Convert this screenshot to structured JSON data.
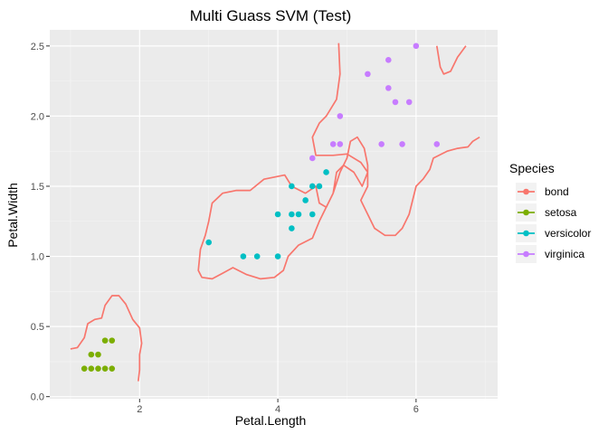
{
  "chart_data": {
    "type": "scatter",
    "title": "Multi Guass SVM (Test)",
    "xlabel": "Petal.Length",
    "ylabel": "Petal.Width",
    "xlim": [
      0.7,
      7.18
    ],
    "ylim": [
      -0.015,
      2.615
    ],
    "x_ticks": [
      2,
      4,
      6
    ],
    "x_tick_labels": [
      "2",
      "4",
      "6"
    ],
    "y_ticks": [
      0.0,
      0.5,
      1.0,
      1.5,
      2.0,
      2.5
    ],
    "y_tick_labels": [
      "0.0",
      "0.5",
      "1.0",
      "1.5",
      "2.0",
      "2.5"
    ],
    "x_minor_ticks": [
      1,
      3,
      5,
      7
    ],
    "y_minor_ticks": [
      0.25,
      0.75,
      1.25,
      1.75,
      2.25
    ],
    "grid": true,
    "legend": {
      "title": "Species",
      "placement": "right",
      "entries": [
        {
          "label": "bond",
          "color": "#F8766D"
        },
        {
          "label": "setosa",
          "color": "#7CAE00"
        },
        {
          "label": "versicolor",
          "color": "#00BFC4"
        },
        {
          "label": "virginica",
          "color": "#C77CFF"
        }
      ]
    },
    "series": [
      {
        "name": "setosa",
        "color": "#7CAE00",
        "points": [
          [
            1.2,
            0.2
          ],
          [
            1.3,
            0.2
          ],
          [
            1.4,
            0.2
          ],
          [
            1.5,
            0.2
          ],
          [
            1.6,
            0.2
          ],
          [
            1.3,
            0.3
          ],
          [
            1.4,
            0.3
          ],
          [
            1.5,
            0.4
          ],
          [
            1.6,
            0.4
          ]
        ]
      },
      {
        "name": "versicolor",
        "color": "#00BFC4",
        "points": [
          [
            3.0,
            1.1
          ],
          [
            3.5,
            1.0
          ],
          [
            3.7,
            1.0
          ],
          [
            4.0,
            1.0
          ],
          [
            4.0,
            1.3
          ],
          [
            4.2,
            1.2
          ],
          [
            4.2,
            1.3
          ],
          [
            4.3,
            1.3
          ],
          [
            4.5,
            1.3
          ],
          [
            4.4,
            1.4
          ],
          [
            4.5,
            1.5
          ],
          [
            4.6,
            1.5
          ],
          [
            4.2,
            1.5
          ],
          [
            4.7,
            1.6
          ]
        ]
      },
      {
        "name": "virginica",
        "color": "#C77CFF",
        "points": [
          [
            4.5,
            1.7
          ],
          [
            4.8,
            1.8
          ],
          [
            4.9,
            1.8
          ],
          [
            4.9,
            2.0
          ],
          [
            5.3,
            2.3
          ],
          [
            5.5,
            1.8
          ],
          [
            5.6,
            2.4
          ],
          [
            5.6,
            2.2
          ],
          [
            5.7,
            2.1
          ],
          [
            5.8,
            1.8
          ],
          [
            5.9,
            2.1
          ],
          [
            6.0,
            2.5
          ],
          [
            6.3,
            1.8
          ]
        ]
      }
    ],
    "bond_lines": [
      {
        "name": "bond",
        "color": "#F8766D",
        "points": [
          [
            1.0,
            0.34
          ],
          [
            1.1,
            0.35
          ],
          [
            1.2,
            0.42
          ],
          [
            1.25,
            0.52
          ],
          [
            1.35,
            0.55
          ],
          [
            1.45,
            0.56
          ],
          [
            1.5,
            0.65
          ],
          [
            1.6,
            0.72
          ],
          [
            1.7,
            0.72
          ],
          [
            1.8,
            0.66
          ],
          [
            1.9,
            0.55
          ],
          [
            2.0,
            0.49
          ],
          [
            2.03,
            0.38
          ],
          [
            2.0,
            0.3
          ],
          [
            2.0,
            0.19
          ],
          [
            1.98,
            0.11
          ]
        ]
      },
      {
        "name": "bond",
        "color": "#F8766D",
        "points": [
          [
            4.88,
            2.52
          ],
          [
            4.9,
            2.3
          ],
          [
            4.85,
            2.12
          ],
          [
            4.7,
            2.0
          ],
          [
            4.6,
            1.95
          ],
          [
            4.5,
            1.85
          ],
          [
            4.55,
            1.72
          ],
          [
            4.8,
            1.72
          ],
          [
            5.0,
            1.73
          ],
          [
            5.2,
            1.67
          ],
          [
            5.3,
            1.6
          ],
          [
            5.22,
            1.5
          ],
          [
            5.1,
            1.6
          ],
          [
            4.95,
            1.65
          ],
          [
            4.85,
            1.6
          ],
          [
            4.8,
            1.45
          ],
          [
            4.7,
            1.35
          ],
          [
            4.6,
            1.38
          ],
          [
            4.55,
            1.5
          ],
          [
            4.4,
            1.45
          ],
          [
            4.2,
            1.5
          ],
          [
            4.1,
            1.58
          ],
          [
            3.8,
            1.55
          ],
          [
            3.6,
            1.47
          ],
          [
            3.4,
            1.47
          ],
          [
            3.2,
            1.45
          ],
          [
            3.05,
            1.38
          ],
          [
            3.0,
            1.25
          ],
          [
            2.95,
            1.15
          ],
          [
            2.88,
            1.05
          ],
          [
            2.85,
            0.9
          ],
          [
            2.9,
            0.85
          ],
          [
            3.05,
            0.84
          ],
          [
            3.2,
            0.88
          ],
          [
            3.35,
            0.92
          ],
          [
            3.55,
            0.87
          ],
          [
            3.75,
            0.84
          ],
          [
            3.95,
            0.85
          ],
          [
            4.08,
            0.9
          ],
          [
            4.15,
            1.0
          ],
          [
            4.3,
            1.08
          ],
          [
            4.5,
            1.13
          ],
          [
            4.6,
            1.25
          ],
          [
            4.65,
            1.3
          ],
          [
            4.8,
            1.45
          ],
          [
            4.9,
            1.6
          ],
          [
            5.0,
            1.7
          ],
          [
            5.05,
            1.82
          ],
          [
            5.15,
            1.85
          ],
          [
            5.25,
            1.77
          ],
          [
            5.3,
            1.65
          ],
          [
            5.3,
            1.5
          ],
          [
            5.2,
            1.4
          ],
          [
            5.3,
            1.3
          ],
          [
            5.4,
            1.2
          ],
          [
            5.55,
            1.15
          ],
          [
            5.7,
            1.15
          ],
          [
            5.8,
            1.2
          ],
          [
            5.9,
            1.3
          ],
          [
            6.0,
            1.5
          ],
          [
            6.1,
            1.55
          ],
          [
            6.2,
            1.62
          ],
          [
            6.25,
            1.7
          ],
          [
            6.45,
            1.75
          ],
          [
            6.6,
            1.77
          ],
          [
            6.75,
            1.78
          ],
          [
            6.82,
            1.82
          ],
          [
            6.92,
            1.85
          ]
        ]
      },
      {
        "name": "bond",
        "color": "#F8766D",
        "points": [
          [
            6.3,
            2.5
          ],
          [
            6.35,
            2.35
          ],
          [
            6.4,
            2.3
          ],
          [
            6.5,
            2.32
          ],
          [
            6.6,
            2.42
          ],
          [
            6.72,
            2.5
          ]
        ]
      }
    ]
  }
}
